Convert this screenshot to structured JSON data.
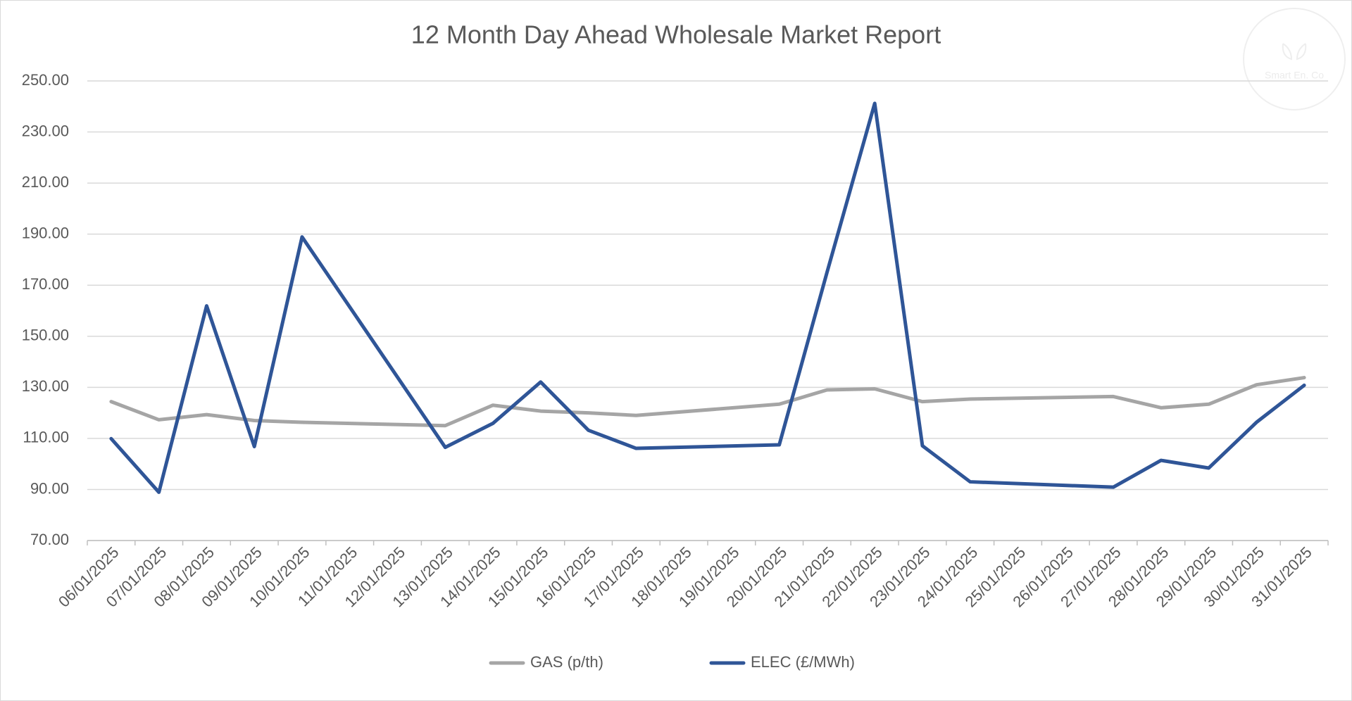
{
  "chart_data": {
    "type": "line",
    "title": "12 Month Day Ahead Wholesale Market Report",
    "watermark": "Smart En. Co",
    "categories": [
      "06/01/2025",
      "07/01/2025",
      "08/01/2025",
      "09/01/2025",
      "10/01/2025",
      "11/01/2025",
      "12/01/2025",
      "13/01/2025",
      "14/01/2025",
      "15/01/2025",
      "16/01/2025",
      "17/01/2025",
      "18/01/2025",
      "19/01/2025",
      "20/01/2025",
      "21/01/2025",
      "22/01/2025",
      "23/01/2025",
      "24/01/2025",
      "25/01/2025",
      "26/01/2025",
      "27/01/2025",
      "28/01/2025",
      "29/01/2025",
      "30/01/2025",
      "31/01/2025"
    ],
    "x": [
      "06/01/2025",
      "07/01/2025",
      "08/01/2025",
      "09/01/2025",
      "10/01/2025",
      "13/01/2025",
      "14/01/2025",
      "15/01/2025",
      "16/01/2025",
      "17/01/2025",
      "20/01/2025",
      "21/01/2025",
      "22/01/2025",
      "23/01/2025",
      "24/01/2025",
      "27/01/2025",
      "28/01/2025",
      "29/01/2025",
      "30/01/2025",
      "31/01/2025"
    ],
    "series": [
      {
        "name": "GAS (p/th)",
        "color": "#a5a5a5",
        "values": [
          124.4,
          117.3,
          119.3,
          117,
          116.3,
          115,
          123,
          120.7,
          120,
          119,
          123.4,
          129,
          129.4,
          124.4,
          125.4,
          126.4,
          122,
          123.4,
          131,
          133.8
        ]
      },
      {
        "name": "ELEC (£/MWh)",
        "color": "#2f5597",
        "values": [
          109.9,
          88.9,
          161.9,
          106.8,
          188.9,
          106.5,
          115.9,
          132.1,
          113.2,
          106.1,
          107.5,
          175,
          241.2,
          107.1,
          93,
          90.9,
          101.4,
          98.4,
          116.3,
          130.8
        ]
      }
    ],
    "ylim": [
      70,
      250
    ],
    "yticks": [
      {
        "value": 70,
        "label": "70.00"
      },
      {
        "value": 90,
        "label": "90.00"
      },
      {
        "value": 110,
        "label": "110.00"
      },
      {
        "value": 130,
        "label": "130.00"
      },
      {
        "value": 150,
        "label": "150.00"
      },
      {
        "value": 170,
        "label": "170.00"
      },
      {
        "value": 190,
        "label": "190.00"
      },
      {
        "value": 210,
        "label": "210.00"
      },
      {
        "value": 230,
        "label": "230.00"
      },
      {
        "value": 250,
        "label": "250.00"
      }
    ],
    "grid": true,
    "legend": "bottom"
  }
}
